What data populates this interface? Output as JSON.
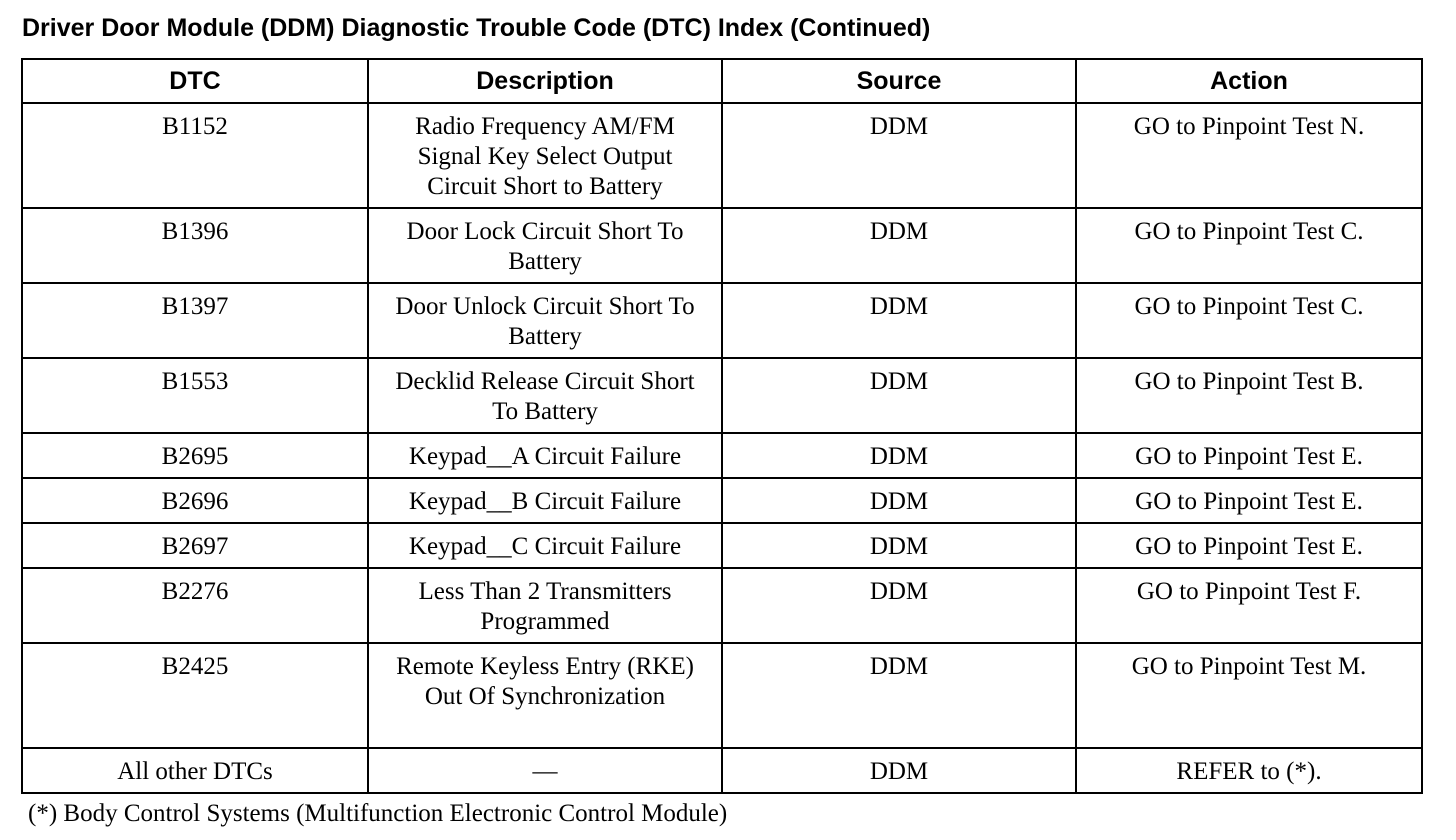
{
  "title": "Driver Door Module (DDM) Diagnostic Trouble Code (DTC) Index (Continued)",
  "table": {
    "headers": [
      "DTC",
      "Description",
      "Source",
      "Action"
    ],
    "rows": [
      {
        "dtc": "B1152",
        "description": "Radio Frequency AM/FM Signal Key Select Output Circuit Short to Battery",
        "source": "DDM",
        "action": "GO to Pinpoint Test N."
      },
      {
        "dtc": "B1396",
        "description": "Door Lock Circuit Short To Battery",
        "source": "DDM",
        "action": "GO to Pinpoint Test C."
      },
      {
        "dtc": "B1397",
        "description": "Door Unlock Circuit Short To Battery",
        "source": "DDM",
        "action": "GO to Pinpoint Test C."
      },
      {
        "dtc": "B1553",
        "description": "Decklid Release Circuit Short To Battery",
        "source": "DDM",
        "action": "GO to Pinpoint Test B."
      },
      {
        "dtc": "B2695",
        "description": "Keypad__A Circuit Failure",
        "source": "DDM",
        "action": "GO to Pinpoint Test E."
      },
      {
        "dtc": "B2696",
        "description": "Keypad__B Circuit Failure",
        "source": "DDM",
        "action": "GO to Pinpoint Test E."
      },
      {
        "dtc": "B2697",
        "description": "Keypad__C Circuit Failure",
        "source": "DDM",
        "action": "GO to Pinpoint Test E."
      },
      {
        "dtc": "B2276",
        "description": "Less Than 2 Transmitters Programmed",
        "source": "DDM",
        "action": "GO to Pinpoint Test F."
      },
      {
        "dtc": "B2425",
        "description": "Remote Keyless Entry (RKE) Out Of Synchronization",
        "source": "DDM",
        "action": "GO to Pinpoint Test M."
      },
      {
        "dtc": "All other DTCs",
        "description": "—",
        "source": "DDM",
        "action": "REFER to (*)."
      }
    ]
  },
  "footnote": "(*) Body Control Systems (Multifunction Electronic Control Module)"
}
